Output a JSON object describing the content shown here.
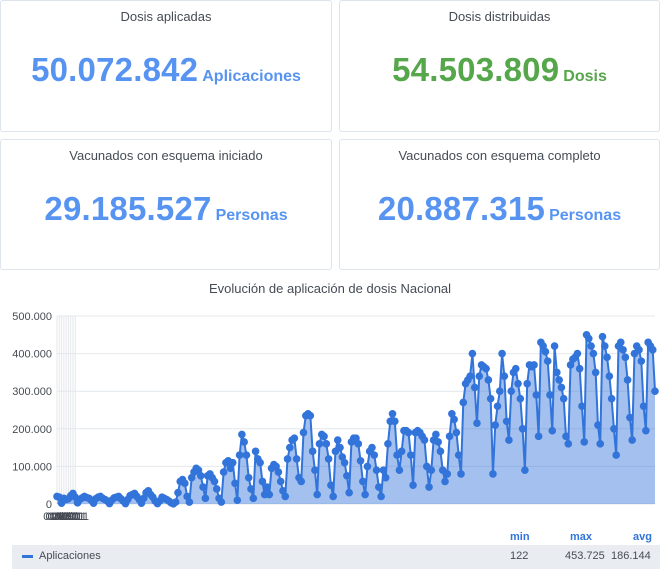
{
  "stats": [
    {
      "title": "Dosis aplicadas",
      "value": "50.072.842",
      "unit": "Aplicaciones",
      "color": "#5794f2"
    },
    {
      "title": "Dosis distribuidas",
      "value": "54.503.809",
      "unit": "Dosis",
      "color": "#56a64b"
    },
    {
      "title": "Vacunados con esquema iniciado",
      "value": "29.185.527",
      "unit": "Personas",
      "color": "#5794f2"
    },
    {
      "title": "Vacunados con esquema completo",
      "value": "20.887.315",
      "unit": "Personas",
      "color": "#5794f2"
    }
  ],
  "legend": {
    "headers": {
      "min": "min",
      "max": "max",
      "avg": "avg"
    },
    "series_name": "Aplicaciones",
    "min": "122",
    "max": "453.725",
    "avg": "186.144"
  },
  "chart_data": {
    "type": "area",
    "title": "Evolución de aplicación de dosis Nacional",
    "xlabel": "",
    "ylabel": "",
    "x_tick_labels": [
      "01/01",
      "02/01",
      "03/01",
      "04/01",
      "05/01",
      "06/01",
      "07/01",
      "08/01",
      "09/01"
    ],
    "x_range": [
      "2021-01-01",
      "2021-09-20"
    ],
    "y_tick_labels": [
      "0",
      "100.000",
      "200.000",
      "300.000",
      "400.000",
      "500.000"
    ],
    "ylim": [
      0,
      500000
    ],
    "grid": true,
    "legend_position": "bottom",
    "series": [
      {
        "name": "Aplicaciones",
        "color": "#3274d9",
        "points": [
          [
            "2021-01-01",
            20000
          ],
          [
            "2021-01-02",
            18000
          ],
          [
            "2021-01-03",
            2000
          ],
          [
            "2021-01-04",
            15000
          ],
          [
            "2021-01-05",
            12000
          ],
          [
            "2021-01-06",
            14000
          ],
          [
            "2021-01-07",
            22000
          ],
          [
            "2021-01-08",
            28000
          ],
          [
            "2021-01-09",
            18000
          ],
          [
            "2021-01-10",
            3000
          ],
          [
            "2021-01-11",
            12000
          ],
          [
            "2021-01-12",
            16000
          ],
          [
            "2021-01-13",
            20000
          ],
          [
            "2021-01-14",
            17000
          ],
          [
            "2021-01-15",
            15000
          ],
          [
            "2021-01-16",
            10000
          ],
          [
            "2021-01-17",
            2000
          ],
          [
            "2021-01-18",
            14000
          ],
          [
            "2021-01-19",
            18000
          ],
          [
            "2021-01-20",
            20000
          ],
          [
            "2021-01-21",
            15000
          ],
          [
            "2021-01-22",
            12000
          ],
          [
            "2021-01-23",
            8000
          ],
          [
            "2021-01-24",
            1000
          ],
          [
            "2021-01-25",
            10000
          ],
          [
            "2021-01-26",
            16000
          ],
          [
            "2021-01-27",
            18000
          ],
          [
            "2021-01-28",
            20000
          ],
          [
            "2021-01-29",
            14000
          ],
          [
            "2021-01-30",
            8000
          ],
          [
            "2021-01-31",
            1000
          ],
          [
            "2021-02-01",
            12000
          ],
          [
            "2021-02-02",
            22000
          ],
          [
            "2021-02-03",
            25000
          ],
          [
            "2021-02-04",
            28000
          ],
          [
            "2021-02-05",
            20000
          ],
          [
            "2021-02-06",
            12000
          ],
          [
            "2021-02-07",
            2000
          ],
          [
            "2021-02-08",
            15000
          ],
          [
            "2021-02-09",
            30000
          ],
          [
            "2021-02-10",
            35000
          ],
          [
            "2021-02-11",
            25000
          ],
          [
            "2021-02-12",
            18000
          ],
          [
            "2021-02-13",
            8000
          ],
          [
            "2021-02-14",
            1000
          ],
          [
            "2021-02-15",
            8000
          ],
          [
            "2021-02-16",
            18000
          ],
          [
            "2021-02-17",
            15000
          ],
          [
            "2021-02-18",
            12000
          ],
          [
            "2021-02-19",
            8000
          ],
          [
            "2021-02-20",
            3000
          ],
          [
            "2021-02-21",
            500
          ],
          [
            "2021-02-22",
            5000
          ],
          [
            "2021-02-23",
            30000
          ],
          [
            "2021-02-24",
            60000
          ],
          [
            "2021-02-25",
            65000
          ],
          [
            "2021-02-26",
            55000
          ],
          [
            "2021-02-27",
            20000
          ],
          [
            "2021-02-28",
            5000
          ],
          [
            "2021-03-01",
            70000
          ],
          [
            "2021-03-02",
            85000
          ],
          [
            "2021-03-03",
            95000
          ],
          [
            "2021-03-04",
            90000
          ],
          [
            "2021-03-05",
            75000
          ],
          [
            "2021-03-06",
            45000
          ],
          [
            "2021-03-07",
            15000
          ],
          [
            "2021-03-08",
            75000
          ],
          [
            "2021-03-09",
            80000
          ],
          [
            "2021-03-10",
            70000
          ],
          [
            "2021-03-11",
            60000
          ],
          [
            "2021-03-12",
            40000
          ],
          [
            "2021-03-13",
            15000
          ],
          [
            "2021-03-14",
            5000
          ],
          [
            "2021-03-15",
            85000
          ],
          [
            "2021-03-16",
            110000
          ],
          [
            "2021-03-17",
            115000
          ],
          [
            "2021-03-18",
            95000
          ],
          [
            "2021-03-19",
            110000
          ],
          [
            "2021-03-20",
            55000
          ],
          [
            "2021-03-21",
            10000
          ],
          [
            "2021-03-22",
            130000
          ],
          [
            "2021-03-23",
            185000
          ],
          [
            "2021-03-24",
            165000
          ],
          [
            "2021-03-25",
            130000
          ],
          [
            "2021-03-26",
            70000
          ],
          [
            "2021-03-27",
            40000
          ],
          [
            "2021-03-28",
            15000
          ],
          [
            "2021-03-29",
            140000
          ],
          [
            "2021-03-30",
            120000
          ],
          [
            "2021-03-31",
            110000
          ],
          [
            "2021-04-01",
            60000
          ],
          [
            "2021-04-02",
            25000
          ],
          [
            "2021-04-03",
            45000
          ],
          [
            "2021-04-04",
            25000
          ],
          [
            "2021-04-05",
            95000
          ],
          [
            "2021-04-06",
            105000
          ],
          [
            "2021-04-07",
            100000
          ],
          [
            "2021-04-08",
            85000
          ],
          [
            "2021-04-09",
            60000
          ],
          [
            "2021-04-10",
            35000
          ],
          [
            "2021-04-11",
            20000
          ],
          [
            "2021-04-12",
            120000
          ],
          [
            "2021-04-13",
            150000
          ],
          [
            "2021-04-14",
            170000
          ],
          [
            "2021-04-15",
            175000
          ],
          [
            "2021-04-16",
            120000
          ],
          [
            "2021-04-17",
            70000
          ],
          [
            "2021-04-18",
            60000
          ],
          [
            "2021-04-19",
            190000
          ],
          [
            "2021-04-20",
            235000
          ],
          [
            "2021-04-21",
            240000
          ],
          [
            "2021-04-22",
            235000
          ],
          [
            "2021-04-23",
            140000
          ],
          [
            "2021-04-24",
            90000
          ],
          [
            "2021-04-25",
            25000
          ],
          [
            "2021-04-26",
            160000
          ],
          [
            "2021-04-27",
            185000
          ],
          [
            "2021-04-28",
            180000
          ],
          [
            "2021-04-29",
            160000
          ],
          [
            "2021-04-30",
            120000
          ],
          [
            "2021-05-01",
            50000
          ],
          [
            "2021-05-02",
            20000
          ],
          [
            "2021-05-03",
            140000
          ],
          [
            "2021-05-04",
            170000
          ],
          [
            "2021-05-05",
            150000
          ],
          [
            "2021-05-06",
            125000
          ],
          [
            "2021-05-07",
            110000
          ],
          [
            "2021-05-08",
            75000
          ],
          [
            "2021-05-09",
            30000
          ],
          [
            "2021-05-10",
            165000
          ],
          [
            "2021-05-11",
            175000
          ],
          [
            "2021-05-12",
            175000
          ],
          [
            "2021-05-13",
            160000
          ],
          [
            "2021-05-14",
            115000
          ],
          [
            "2021-05-15",
            60000
          ],
          [
            "2021-05-16",
            25000
          ],
          [
            "2021-05-17",
            100000
          ],
          [
            "2021-05-18",
            140000
          ],
          [
            "2021-05-19",
            150000
          ],
          [
            "2021-05-20",
            130000
          ],
          [
            "2021-05-21",
            90000
          ],
          [
            "2021-05-22",
            45000
          ],
          [
            "2021-05-23",
            20000
          ],
          [
            "2021-05-24",
            90000
          ],
          [
            "2021-05-25",
            70000
          ],
          [
            "2021-05-26",
            160000
          ],
          [
            "2021-05-27",
            220000
          ],
          [
            "2021-05-28",
            240000
          ],
          [
            "2021-05-29",
            220000
          ],
          [
            "2021-05-30",
            130000
          ],
          [
            "2021-05-31",
            90000
          ],
          [
            "2021-06-01",
            140000
          ],
          [
            "2021-06-02",
            195000
          ],
          [
            "2021-06-03",
            195000
          ],
          [
            "2021-06-04",
            190000
          ],
          [
            "2021-06-05",
            130000
          ],
          [
            "2021-06-06",
            50000
          ],
          [
            "2021-06-07",
            190000
          ],
          [
            "2021-06-08",
            195000
          ],
          [
            "2021-06-09",
            190000
          ],
          [
            "2021-06-10",
            180000
          ],
          [
            "2021-06-11",
            170000
          ],
          [
            "2021-06-12",
            100000
          ],
          [
            "2021-06-13",
            45000
          ],
          [
            "2021-06-14",
            90000
          ],
          [
            "2021-06-15",
            170000
          ],
          [
            "2021-06-16",
            185000
          ],
          [
            "2021-06-17",
            165000
          ],
          [
            "2021-06-18",
            140000
          ],
          [
            "2021-06-19",
            90000
          ],
          [
            "2021-06-20",
            60000
          ],
          [
            "2021-06-21",
            80000
          ],
          [
            "2021-06-22",
            180000
          ],
          [
            "2021-06-23",
            240000
          ],
          [
            "2021-06-24",
            225000
          ],
          [
            "2021-06-25",
            190000
          ],
          [
            "2021-06-26",
            130000
          ],
          [
            "2021-06-27",
            80000
          ],
          [
            "2021-06-28",
            270000
          ],
          [
            "2021-06-29",
            320000
          ],
          [
            "2021-06-30",
            330000
          ],
          [
            "2021-07-01",
            340000
          ],
          [
            "2021-07-02",
            400000
          ],
          [
            "2021-07-03",
            310000
          ],
          [
            "2021-07-04",
            215000
          ],
          [
            "2021-07-05",
            340000
          ],
          [
            "2021-07-06",
            370000
          ],
          [
            "2021-07-07",
            365000
          ],
          [
            "2021-07-08",
            360000
          ],
          [
            "2021-07-09",
            330000
          ],
          [
            "2021-07-10",
            280000
          ],
          [
            "2021-07-11",
            80000
          ],
          [
            "2021-07-12",
            210000
          ],
          [
            "2021-07-13",
            260000
          ],
          [
            "2021-07-14",
            300000
          ],
          [
            "2021-07-15",
            400000
          ],
          [
            "2021-07-16",
            340000
          ],
          [
            "2021-07-17",
            220000
          ],
          [
            "2021-07-18",
            170000
          ],
          [
            "2021-07-19",
            300000
          ],
          [
            "2021-07-20",
            350000
          ],
          [
            "2021-07-21",
            360000
          ],
          [
            "2021-07-22",
            320000
          ],
          [
            "2021-07-23",
            280000
          ],
          [
            "2021-07-24",
            200000
          ],
          [
            "2021-07-25",
            90000
          ],
          [
            "2021-07-26",
            320000
          ],
          [
            "2021-07-27",
            370000
          ],
          [
            "2021-07-28",
            365000
          ],
          [
            "2021-07-29",
            370000
          ],
          [
            "2021-07-30",
            290000
          ],
          [
            "2021-07-31",
            180000
          ],
          [
            "2021-08-01",
            430000
          ],
          [
            "2021-08-02",
            420000
          ],
          [
            "2021-08-03",
            405000
          ],
          [
            "2021-08-04",
            380000
          ],
          [
            "2021-08-05",
            290000
          ],
          [
            "2021-08-06",
            195000
          ],
          [
            "2021-08-07",
            420000
          ],
          [
            "2021-08-08",
            350000
          ],
          [
            "2021-08-09",
            330000
          ],
          [
            "2021-08-10",
            310000
          ],
          [
            "2021-08-11",
            280000
          ],
          [
            "2021-08-12",
            180000
          ],
          [
            "2021-08-13",
            160000
          ],
          [
            "2021-08-14",
            370000
          ],
          [
            "2021-08-15",
            385000
          ],
          [
            "2021-08-16",
            390000
          ],
          [
            "2021-08-17",
            400000
          ],
          [
            "2021-08-18",
            360000
          ],
          [
            "2021-08-19",
            260000
          ],
          [
            "2021-08-20",
            165000
          ],
          [
            "2021-08-21",
            450000
          ],
          [
            "2021-08-22",
            440000
          ],
          [
            "2021-08-23",
            420000
          ],
          [
            "2021-08-24",
            400000
          ],
          [
            "2021-08-25",
            350000
          ],
          [
            "2021-08-26",
            210000
          ],
          [
            "2021-08-27",
            160000
          ],
          [
            "2021-08-28",
            445000
          ],
          [
            "2021-08-29",
            420000
          ],
          [
            "2021-08-30",
            390000
          ],
          [
            "2021-08-31",
            340000
          ],
          [
            "2021-09-01",
            280000
          ],
          [
            "2021-09-02",
            200000
          ],
          [
            "2021-09-03",
            130000
          ],
          [
            "2021-09-04",
            420000
          ],
          [
            "2021-09-05",
            430000
          ],
          [
            "2021-09-06",
            410000
          ],
          [
            "2021-09-07",
            390000
          ],
          [
            "2021-09-08",
            330000
          ],
          [
            "2021-09-09",
            230000
          ],
          [
            "2021-09-10",
            170000
          ],
          [
            "2021-09-11",
            400000
          ],
          [
            "2021-09-12",
            420000
          ],
          [
            "2021-09-13",
            410000
          ],
          [
            "2021-09-14",
            380000
          ],
          [
            "2021-09-15",
            260000
          ],
          [
            "2021-09-16",
            195000
          ],
          [
            "2021-09-17",
            430000
          ],
          [
            "2021-09-18",
            420000
          ],
          [
            "2021-09-19",
            410000
          ],
          [
            "2021-09-20",
            300000
          ]
        ]
      }
    ]
  }
}
